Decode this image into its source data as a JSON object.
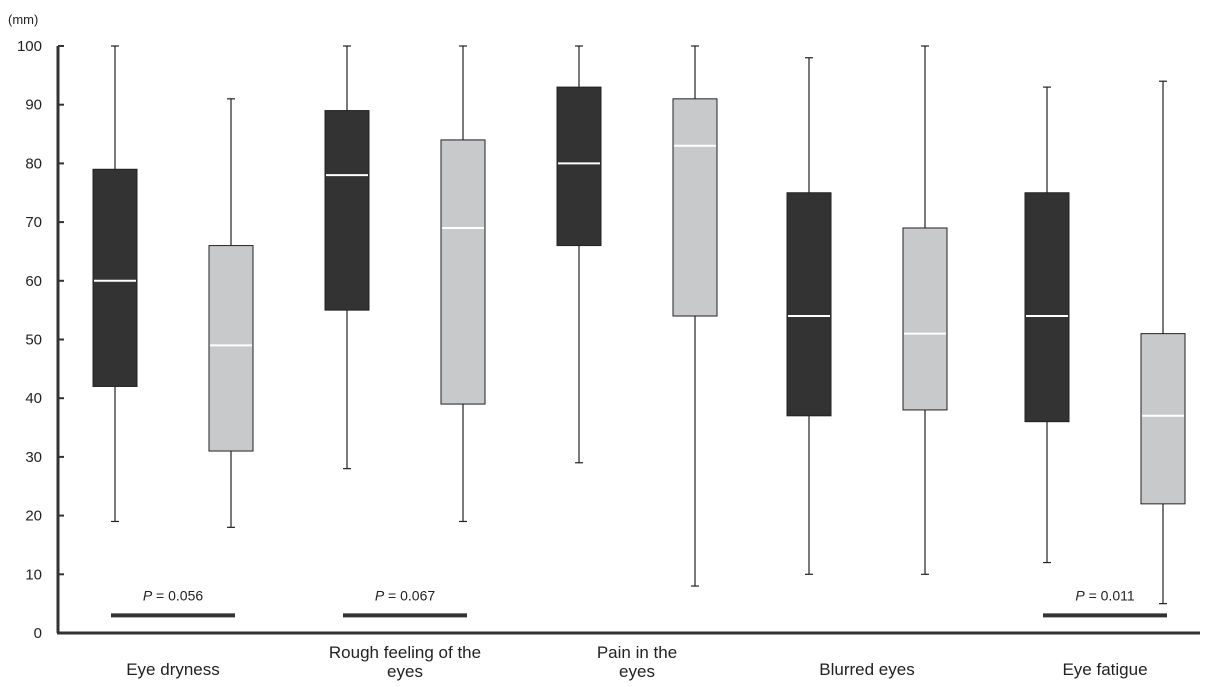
{
  "chart_data": {
    "type": "box",
    "unit_label": "(mm)",
    "ylim": [
      0,
      100
    ],
    "yticks": [
      0,
      10,
      20,
      30,
      40,
      50,
      60,
      70,
      80,
      90,
      100
    ],
    "categories": [
      "Eye dryness",
      "Rough feeling of the eyes",
      "Pain in the eyes",
      "Blurred eyes",
      "Eye fatigue"
    ],
    "series": [
      {
        "color": "#333333",
        "median_color": "#ffffff",
        "boxes": [
          {
            "min": 19,
            "q1": 42,
            "median": 60,
            "q3": 79,
            "max": 100
          },
          {
            "min": 28,
            "q1": 55,
            "median": 78,
            "q3": 89,
            "max": 100
          },
          {
            "min": 29,
            "q1": 66,
            "median": 80,
            "q3": 93,
            "max": 100
          },
          {
            "min": 10,
            "q1": 37,
            "median": 54,
            "q3": 75,
            "max": 98
          },
          {
            "min": 12,
            "q1": 36,
            "median": 54,
            "q3": 75,
            "max": 93
          }
        ]
      },
      {
        "color": "#c8c9cb",
        "median_color": "#ffffff",
        "boxes": [
          {
            "min": 18,
            "q1": 31,
            "median": 49,
            "q3": 66,
            "max": 91
          },
          {
            "min": 19,
            "q1": 39,
            "median": 69,
            "q3": 84,
            "max": 100
          },
          {
            "min": 8,
            "q1": 54,
            "median": 83,
            "q3": 91,
            "max": 100
          },
          {
            "min": 10,
            "q1": 38,
            "median": 51,
            "q3": 69,
            "max": 100
          },
          {
            "min": 5,
            "q1": 22,
            "median": 37,
            "q3": 51,
            "max": 94
          }
        ]
      }
    ],
    "significance": [
      {
        "category_index": 0,
        "p_prefix": "P",
        "p_value": " = 0.056",
        "level": 3
      },
      {
        "category_index": 1,
        "p_prefix": "P",
        "p_value": " = 0.067",
        "level": 3
      },
      {
        "category_index": 4,
        "p_prefix": "P",
        "p_value": " = 0.011",
        "level": 3
      }
    ],
    "grid": false,
    "legend": "none"
  }
}
